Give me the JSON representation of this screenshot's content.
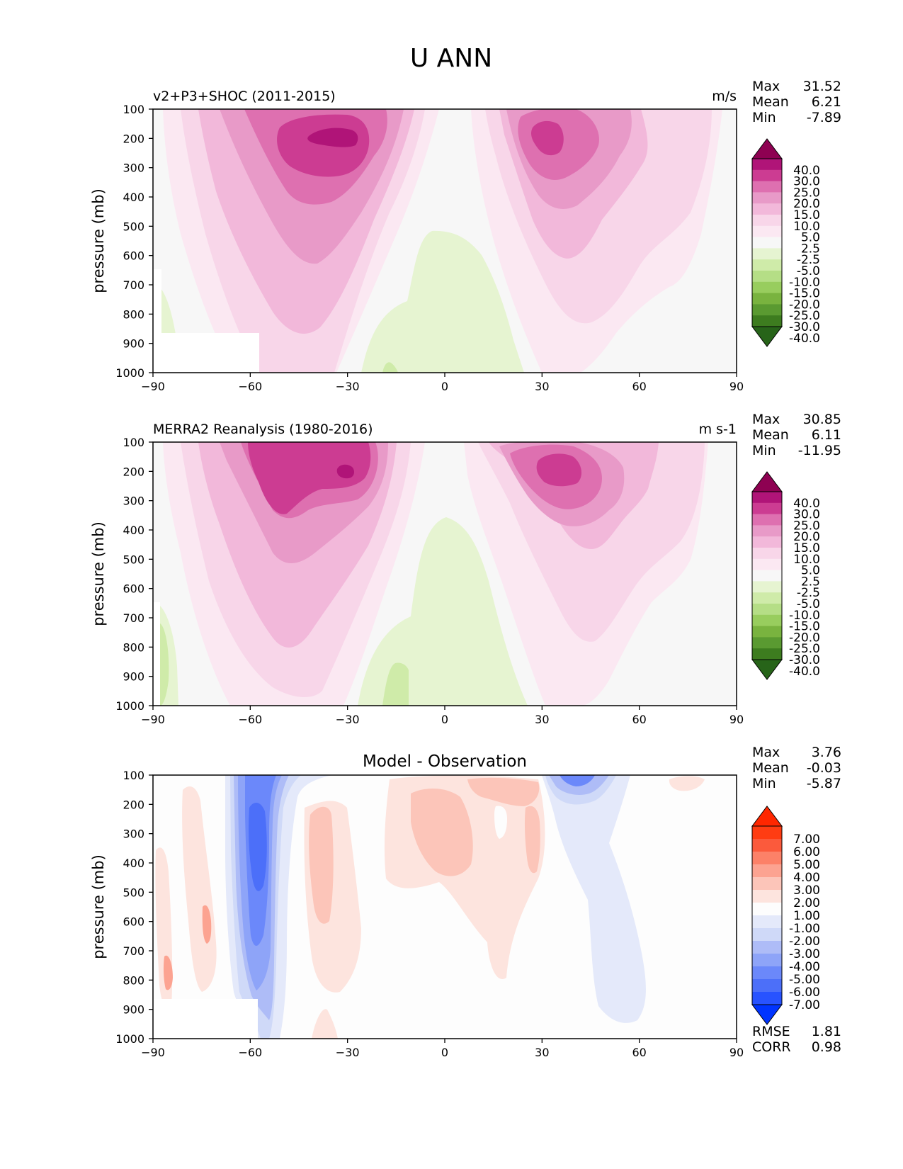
{
  "title": "U ANN",
  "ytick_labels": [
    "100",
    "200",
    "300",
    "400",
    "500",
    "600",
    "700",
    "800",
    "900",
    "1000"
  ],
  "xtick_labels": [
    "−90",
    "−60",
    "−30",
    "0",
    "30",
    "60",
    "90"
  ],
  "stat_labels": {
    "max": "Max",
    "mean": "Mean",
    "min": "Min",
    "rmse": "RMSE",
    "corr": "CORR"
  },
  "colors": {
    "pinkgreen": [
      "#276419",
      "#3d7c1f",
      "#5a9a31",
      "#79b33f",
      "#98cd5e",
      "#b5de86",
      "#cfeba9",
      "#e6f4d1",
      "#f7f7f7",
      "#fbe8f2",
      "#f8d6e9",
      "#f2b8da",
      "#e89ac8",
      "#de70b0",
      "#cc3c92",
      "#b01478",
      "#8e0152"
    ],
    "diff": [
      "#0034ff",
      "#2853ff",
      "#4c6ff9",
      "#6b88fa",
      "#8ea4f8",
      "#aebcf7",
      "#cfd9f8",
      "#e4e9fa",
      "#fdfdfd",
      "#fde4de",
      "#fcc5b9",
      "#fca391",
      "#fc8168",
      "#fb5a3c",
      "#ff3c12",
      "#ff2700"
    ]
  },
  "chart_data": [
    {
      "type": "contourf",
      "panel": "test",
      "subtitle": "v2+P3+SHOC (2011-2015)",
      "units": "m/s",
      "xlabel": "",
      "ylabel": "pressure (mb)",
      "xlim": [
        -90,
        90
      ],
      "ylim": [
        1000,
        100
      ],
      "x_ticks": [
        -90,
        -60,
        -30,
        0,
        30,
        60,
        90
      ],
      "y_ticks": [
        100,
        200,
        300,
        400,
        500,
        600,
        700,
        800,
        900,
        1000
      ],
      "stats": {
        "max": "31.52",
        "mean": "6.21",
        "min": "-7.89"
      },
      "colorbar": {
        "levels": [
          "40.0",
          "30.0",
          "25.0",
          "20.0",
          "15.0",
          "10.0",
          "5.0",
          "2.5",
          "-2.5",
          "-5.0",
          "-10.0",
          "-15.0",
          "-20.0",
          "-25.0",
          "-30.0",
          "-40.0"
        ],
        "extend": "both"
      },
      "features": [
        {
          "name": "southern jet",
          "center_lat": -35,
          "center_p": 200,
          "peak": 31.5
        },
        {
          "name": "northern jet",
          "center_lat": 32,
          "center_p": 200,
          "peak": 25
        },
        {
          "name": "tropical easterlies",
          "center_lat": 0,
          "p_range": [
            520,
            1000
          ],
          "min": -5
        }
      ]
    },
    {
      "type": "contourf",
      "panel": "reference",
      "subtitle": "MERRA2 Reanalysis (1980-2016)",
      "units": "m s-1",
      "xlabel": "",
      "ylabel": "pressure (mb)",
      "xlim": [
        -90,
        90
      ],
      "ylim": [
        1000,
        100
      ],
      "x_ticks": [
        -90,
        -60,
        -30,
        0,
        30,
        60,
        90
      ],
      "y_ticks": [
        100,
        200,
        300,
        400,
        500,
        600,
        700,
        800,
        900,
        1000
      ],
      "stats": {
        "max": "30.85",
        "mean": "6.11",
        "min": "-11.95"
      },
      "colorbar": {
        "levels": [
          "40.0",
          "30.0",
          "25.0",
          "20.0",
          "15.0",
          "10.0",
          "5.0",
          "2.5",
          "-2.5",
          "-5.0",
          "-10.0",
          "-15.0",
          "-20.0",
          "-25.0",
          "-30.0",
          "-40.0"
        ],
        "extend": "both"
      },
      "features": [
        {
          "name": "southern jet",
          "center_lat": -32,
          "center_p": 200,
          "peak": 30.9
        },
        {
          "name": "northern jet",
          "center_lat": 35,
          "center_p": 200,
          "peak": 28
        },
        {
          "name": "tropical easterlies",
          "center_lat": 0,
          "p_range": [
            350,
            1000
          ],
          "min": -12
        }
      ]
    },
    {
      "type": "contourf",
      "panel": "difference",
      "subtitle": "Model - Observation",
      "xlabel": "",
      "ylabel": "pressure (mb)",
      "xlim": [
        -90,
        90
      ],
      "ylim": [
        1000,
        100
      ],
      "x_ticks": [
        -90,
        -60,
        -30,
        0,
        30,
        60,
        90
      ],
      "y_ticks": [
        100,
        200,
        300,
        400,
        500,
        600,
        700,
        800,
        900,
        1000
      ],
      "stats": {
        "max": "3.76",
        "mean": "-0.03",
        "min": "-5.87",
        "rmse": "1.81",
        "corr": "0.98"
      },
      "colorbar": {
        "levels": [
          "7.00",
          "6.00",
          "5.00",
          "4.00",
          "3.00",
          "2.00",
          "1.00",
          "-1.00",
          "-2.00",
          "-3.00",
          "-4.00",
          "-5.00",
          "-6.00",
          "-7.00"
        ],
        "extend": "both"
      }
    }
  ]
}
